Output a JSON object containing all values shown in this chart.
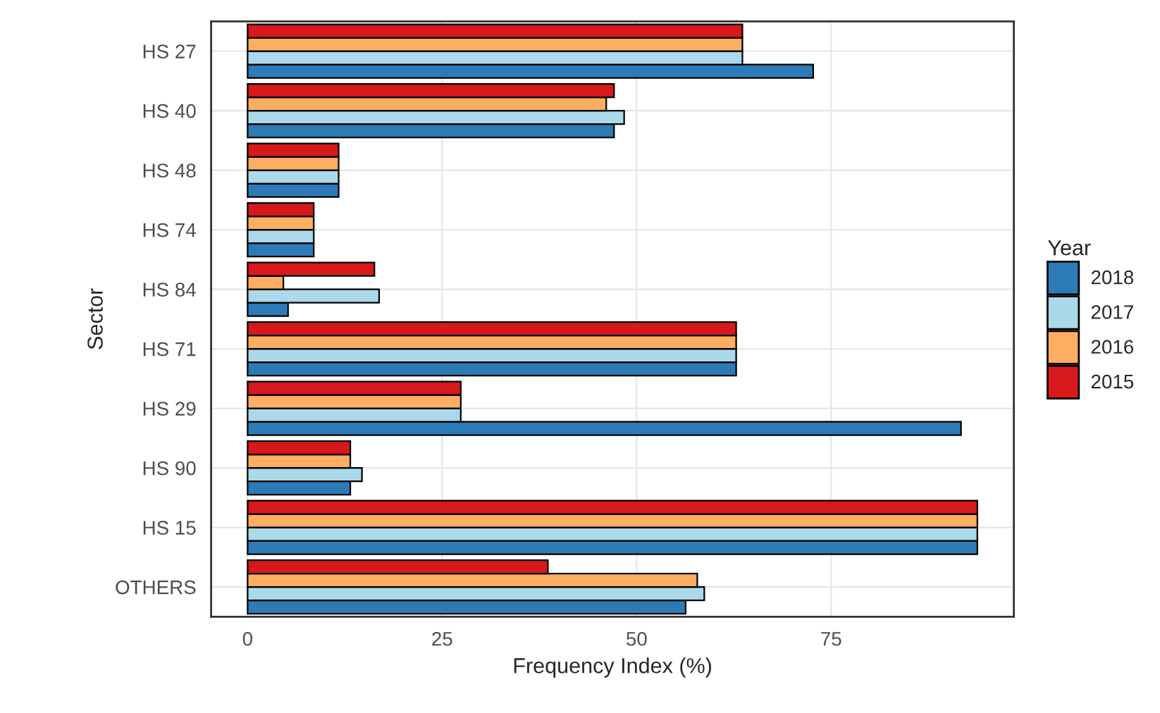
{
  "chart_data": {
    "type": "bar",
    "orientation": "horizontal",
    "xlabel": "Frequency Index (%)",
    "ylabel": "Sector",
    "legend_title": "Year",
    "categories": [
      "HS 27",
      "HS 40",
      "HS 48",
      "HS 74",
      "HS 84",
      "HS 71",
      "HS 29",
      "HS 90",
      "HS 15",
      "OTHERS"
    ],
    "series": [
      {
        "name": "2018",
        "color": "#2c7bb6",
        "values": [
          72.7,
          47.1,
          11.7,
          8.5,
          5.2,
          62.8,
          91.7,
          13.2,
          93.8,
          56.3
        ]
      },
      {
        "name": "2017",
        "color": "#abd9e9",
        "values": [
          63.6,
          48.4,
          11.7,
          8.5,
          16.9,
          62.8,
          27.4,
          14.7,
          93.8,
          58.7
        ]
      },
      {
        "name": "2016",
        "color": "#fdae61",
        "values": [
          63.6,
          46.1,
          11.7,
          8.5,
          4.6,
          62.8,
          27.4,
          13.2,
          93.8,
          57.8
        ]
      },
      {
        "name": "2015",
        "color": "#d7191c",
        "values": [
          63.6,
          47.1,
          11.7,
          8.5,
          16.3,
          62.8,
          27.4,
          13.2,
          93.8,
          38.6
        ]
      }
    ],
    "xlim": [
      -4.69,
      98.49
    ],
    "xticks": [
      0,
      25,
      50,
      75
    ],
    "grid": true,
    "legend": "right"
  }
}
